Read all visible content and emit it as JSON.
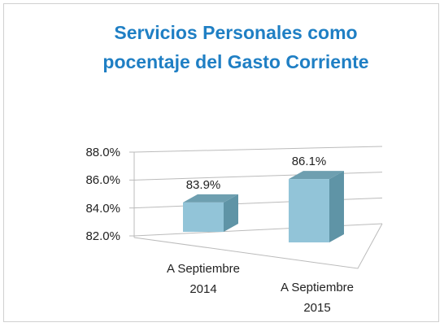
{
  "chart_data": {
    "type": "bar3d",
    "title": "Servicios Personales como pocentaje del Gasto Corriente",
    "categories": [
      "A Septiembre 2014",
      "A Septiembre 2015"
    ],
    "values": [
      83.9,
      86.1
    ],
    "value_labels": [
      "83.9%",
      "86.1%"
    ],
    "color": "#92c4d8",
    "ylim": [
      82,
      88
    ],
    "yticks": [
      {
        "value": 82,
        "label": "82.0%"
      },
      {
        "value": 84,
        "label": "84.0%"
      },
      {
        "value": 86,
        "label": "86.0%"
      },
      {
        "value": 88,
        "label": "88.0%"
      }
    ],
    "grid": true
  }
}
